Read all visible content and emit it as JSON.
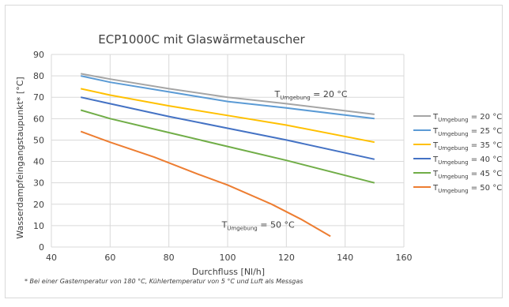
{
  "chart_data": {
    "type": "line",
    "title": "ECP1000C mit Glaswärmetauscher",
    "xlabel": "Durchfluss [Nl/h]",
    "ylabel": "Wasserdampfeingangstaupunkt* [°C]",
    "xlim": [
      40,
      160
    ],
    "ylim": [
      0,
      90
    ],
    "xticks": [
      40,
      60,
      80,
      100,
      120,
      140,
      160
    ],
    "yticks": [
      0,
      10,
      20,
      30,
      40,
      50,
      60,
      70,
      80,
      90
    ],
    "grid": true,
    "legend_position": "right",
    "series": [
      {
        "name_main": "T",
        "name_sub": "Umgebung",
        "name_rest": " = 20 °C",
        "color": "#a5a5a5",
        "x": [
          50,
          60,
          80,
          100,
          120,
          150
        ],
        "y": [
          81,
          78.5,
          74,
          70,
          67,
          62
        ]
      },
      {
        "name_main": "T",
        "name_sub": "Umgebung",
        "name_rest": " = 25 °C",
        "color": "#5b9bd5",
        "x": [
          50,
          60,
          80,
          100,
          120,
          150
        ],
        "y": [
          80,
          77,
          72.5,
          68,
          65,
          60
        ]
      },
      {
        "name_main": "T",
        "name_sub": "Umgebung",
        "name_rest": " = 35 °C",
        "color": "#ffc000",
        "x": [
          50,
          60,
          80,
          100,
          120,
          150
        ],
        "y": [
          74,
          71,
          66,
          61.5,
          57,
          49
        ]
      },
      {
        "name_main": "T",
        "name_sub": "Umgebung",
        "name_rest": " = 40 °C",
        "color": "#4472c4",
        "x": [
          50,
          60,
          80,
          100,
          120,
          150
        ],
        "y": [
          70,
          67,
          61,
          55.5,
          50,
          41
        ]
      },
      {
        "name_main": "T",
        "name_sub": "Umgebung",
        "name_rest": " = 45 °C",
        "color": "#70ad47",
        "x": [
          50,
          60,
          80,
          100,
          120,
          150
        ],
        "y": [
          64,
          60,
          53.5,
          47,
          40.5,
          30
        ]
      },
      {
        "name_main": "T",
        "name_sub": "Umgebung",
        "name_rest": " = 50 °C",
        "color": "#ed7d31",
        "x": [
          50,
          60,
          75,
          90,
          100,
          115,
          125,
          135
        ],
        "y": [
          54,
          49,
          42,
          34,
          29,
          20,
          13,
          5
        ]
      }
    ],
    "annotations": [
      {
        "main": "T",
        "sub": "Umgebung",
        "rest": " = 20 °C",
        "x": 116,
        "y": 70
      },
      {
        "main": "T",
        "sub": "Umgebung",
        "rest": " = 50 °C",
        "x": 98,
        "y": 9
      }
    ],
    "footnote": "* Bei einer Gastemperatur von 180 °C, Kühlertemperatur von 5 °C und Luft als Messgas"
  }
}
